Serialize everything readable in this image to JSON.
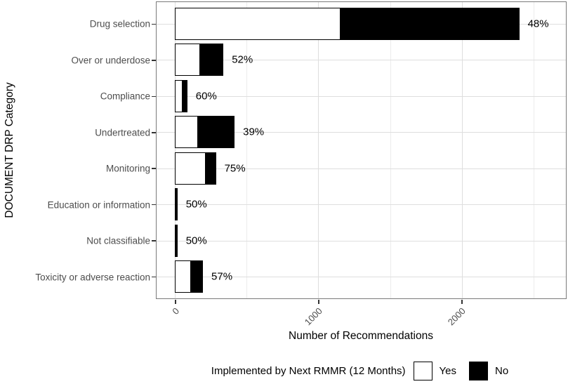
{
  "chart_data": {
    "type": "bar",
    "orientation": "horizontal",
    "stacked": true,
    "title": "",
    "xlabel": "Number of Recommendations",
    "ylabel": "DOCUMENT DRP Category",
    "categories": [
      "Drug selection",
      "Over or underdose",
      "Compliance",
      "Undertreated",
      "Monitoring",
      "Education or information",
      "Not classifiable",
      "Toxicity or adverse reaction"
    ],
    "series": [
      {
        "name": "Yes",
        "fill": "#ffffff",
        "values": [
          1153,
          175,
          51,
          162,
          214,
          8,
          8,
          111
        ]
      },
      {
        "name": "No",
        "fill": "#000000",
        "values": [
          1249,
          162,
          34,
          253,
          71,
          8,
          8,
          83
        ]
      }
    ],
    "bar_labels": [
      "48%",
      "52%",
      "60%",
      "39%",
      "75%",
      "50%",
      "50%",
      "57%"
    ],
    "x_ticks": [
      0,
      1000,
      2000
    ],
    "x_tick_labels": [
      "0",
      "1000",
      "2000"
    ],
    "x_minor_gridlines": [
      500,
      1500,
      2500
    ],
    "xlim": [
      -132,
      2725
    ],
    "grid": true,
    "legend": {
      "position": "bottom",
      "title": "Implemented by Next RMMR (12 Months)",
      "entries": [
        {
          "label": "Yes",
          "fill": "#ffffff"
        },
        {
          "label": "No",
          "fill": "#000000"
        }
      ]
    },
    "colors": {
      "axis_text": "#4d4d4d",
      "label_text": "#000000",
      "panel_border": "#7a7a7a",
      "grid_major": "#dedede",
      "grid_minor": "#ececec",
      "bar_stroke": "#000000",
      "background": "#ffffff"
    }
  }
}
